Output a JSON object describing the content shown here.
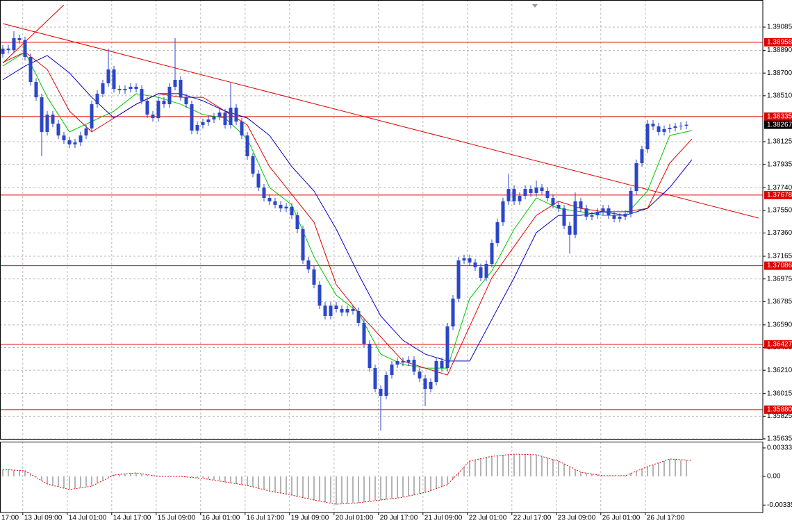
{
  "chart_data": {
    "type": "candlestick",
    "xlim": [
      -0.5,
      136.75
    ],
    "ylim": [
      1.35635,
      1.39312
    ],
    "grid": true,
    "xticks": [
      {
        "value": -4.4,
        "label": "17:00"
      },
      {
        "value": 3.6,
        "label": "13 Jul 09:00"
      },
      {
        "value": 11.6,
        "label": "14 Jul 01:00"
      },
      {
        "value": 19.6,
        "label": "14 Jul 17:00"
      },
      {
        "value": 27.6,
        "label": "15 Jul 09:00"
      },
      {
        "value": 35.6,
        "label": "16 Jul 01:00"
      },
      {
        "value": 43.6,
        "label": "16 Jul 17:00"
      },
      {
        "value": 51.6,
        "label": "19 Jul 09:00"
      },
      {
        "value": 59.6,
        "label": "20 Jul 01:00"
      },
      {
        "value": 67.6,
        "label": "20 Jul 17:00"
      },
      {
        "value": 75.6,
        "label": "21 Jul 09:00"
      },
      {
        "value": 83.6,
        "label": "22 Jul 01:00"
      },
      {
        "value": 91.6,
        "label": "22 Jul 17:00"
      },
      {
        "value": 99.6,
        "label": "23 Jul 09:00"
      },
      {
        "value": 107.6,
        "label": "26 Jul 01:00"
      },
      {
        "value": 115.6,
        "label": "26 Jul 17:00"
      }
    ],
    "yticks": [
      1.39085,
      {
        "value": 1.3889,
        "label": "1.38890"
      },
      {
        "value": 1.387,
        "label": "1.38700"
      },
      {
        "value": 1.3851,
        "label": "1.38510"
      },
      1.38125,
      1.37935,
      {
        "value": 1.3774,
        "label": "1.37740"
      },
      {
        "value": 1.3755,
        "label": "1.37550"
      },
      {
        "value": 1.3736,
        "label": "1.37360"
      },
      1.37165,
      1.36975,
      1.36785,
      {
        "value": 1.3659,
        "label": "1.36590"
      },
      {
        "value": 1.364,
        "label": "1.36400"
      },
      {
        "value": 1.3621,
        "label": "1.36210"
      },
      1.36015,
      1.35825,
      1.35635
    ],
    "candle_color": "#2b46c8",
    "open": [
      1.3886,
      1.38905,
      1.38893,
      1.38992,
      1.38975,
      1.38835,
      1.38625,
      1.38497,
      1.38207,
      1.38352,
      1.38276,
      1.38177,
      1.38137,
      1.38102,
      1.38119,
      1.38177,
      1.38236,
      1.38439,
      1.38527,
      1.38614,
      1.3873,
      1.38567,
      1.38556,
      1.38567,
      1.38585,
      1.38567,
      1.38468,
      1.38352,
      1.38323,
      1.38468,
      1.38439,
      1.38585,
      1.38643,
      1.38497,
      1.38439,
      1.38218,
      1.38265,
      1.38288,
      1.38311,
      1.38335,
      1.38369,
      1.38265,
      1.3841,
      1.38294,
      1.38177,
      1.38003,
      1.37857,
      1.37741,
      1.37654,
      1.37625,
      1.37596,
      1.37566,
      1.3758,
      1.37508,
      1.37392,
      1.3713,
      1.37055,
      1.36927,
      1.36752,
      1.36665,
      1.36752,
      1.36723,
      1.36694,
      1.36723,
      1.36706,
      1.36607,
      1.36432,
      1.36228,
      1.36054,
      1.35996,
      1.3617,
      1.36258,
      1.36287,
      1.36275,
      1.36298,
      1.36199,
      1.36141,
      1.36054,
      1.36112,
      1.36287,
      1.36228,
      1.36577,
      1.3681,
      1.3713,
      1.37148,
      1.37113,
      1.37073,
      1.36985,
      1.37101,
      1.37276,
      1.3745,
      1.37625,
      1.37729,
      1.37625,
      1.37671,
      1.37729,
      1.37695,
      1.37741,
      1.37712,
      1.37654,
      1.37596,
      1.37566,
      1.37421,
      1.37346,
      1.37625,
      1.37566,
      1.37497,
      1.37508,
      1.37538,
      1.37566,
      1.37508,
      1.37479,
      1.37497,
      1.3752,
      1.37712,
      1.37945,
      1.38061,
      1.38276,
      1.38253,
      1.38207,
      1.3823,
      1.38241,
      1.38253,
      1.38259
    ],
    "high": [
      1.38935,
      1.38935,
      1.3905,
      1.39022,
      1.39005,
      1.38865,
      1.38655,
      1.38527,
      1.38382,
      1.38382,
      1.38306,
      1.38207,
      1.38167,
      1.38149,
      1.38207,
      1.38266,
      1.38469,
      1.38557,
      1.38644,
      1.38905,
      1.3876,
      1.38597,
      1.38597,
      1.38615,
      1.38615,
      1.38597,
      1.38498,
      1.38382,
      1.38498,
      1.38498,
      1.38615,
      1.38992,
      1.38673,
      1.38527,
      1.38469,
      1.38295,
      1.38318,
      1.38341,
      1.38365,
      1.38399,
      1.38399,
      1.38614,
      1.3844,
      1.38324,
      1.38207,
      1.38033,
      1.37887,
      1.37771,
      1.37684,
      1.37655,
      1.37626,
      1.3761,
      1.3761,
      1.37538,
      1.37422,
      1.3716,
      1.37085,
      1.36957,
      1.36782,
      1.36782,
      1.36782,
      1.36753,
      1.36753,
      1.36753,
      1.36736,
      1.36637,
      1.36462,
      1.36258,
      1.36084,
      1.362,
      1.36288,
      1.36317,
      1.36317,
      1.36328,
      1.36328,
      1.36229,
      1.36171,
      1.36142,
      1.36317,
      1.36317,
      1.36607,
      1.3684,
      1.3716,
      1.37178,
      1.37178,
      1.37143,
      1.37103,
      1.37131,
      1.37306,
      1.3748,
      1.37655,
      1.37857,
      1.37759,
      1.37701,
      1.37759,
      1.37759,
      1.378,
      1.37771,
      1.37742,
      1.37684,
      1.37626,
      1.37596,
      1.37451,
      1.377,
      1.37655,
      1.37596,
      1.37538,
      1.37568,
      1.37596,
      1.37596,
      1.37538,
      1.37527,
      1.3755,
      1.37742,
      1.37975,
      1.38091,
      1.38306,
      1.38306,
      1.38283,
      1.3826,
      1.38271,
      1.38283,
      1.38289,
      1.38297
    ],
    "low": [
      1.3883,
      1.38863,
      1.38863,
      1.38945,
      1.38805,
      1.38595,
      1.38467,
      1.38003,
      1.38177,
      1.38246,
      1.38147,
      1.38107,
      1.38072,
      1.38072,
      1.38089,
      1.38147,
      1.38206,
      1.38409,
      1.38497,
      1.38584,
      1.38537,
      1.38526,
      1.38526,
      1.38537,
      1.38537,
      1.38438,
      1.38322,
      1.38293,
      1.38293,
      1.38409,
      1.38409,
      1.38555,
      1.38467,
      1.38409,
      1.38188,
      1.38188,
      1.38235,
      1.38258,
      1.38281,
      1.38305,
      1.38235,
      1.38235,
      1.38264,
      1.38147,
      1.37973,
      1.37827,
      1.37711,
      1.37624,
      1.37595,
      1.37566,
      1.37536,
      1.37536,
      1.37478,
      1.37362,
      1.371,
      1.37025,
      1.36897,
      1.36722,
      1.36635,
      1.36635,
      1.36693,
      1.36664,
      1.36664,
      1.36676,
      1.36577,
      1.36402,
      1.36198,
      1.36024,
      1.35705,
      1.35966,
      1.3614,
      1.36228,
      1.36245,
      1.36245,
      1.36169,
      1.36111,
      1.35909,
      1.36024,
      1.36082,
      1.36198,
      1.36198,
      1.36547,
      1.3678,
      1.371,
      1.37083,
      1.37043,
      1.36955,
      1.36955,
      1.37071,
      1.37246,
      1.3742,
      1.37595,
      1.37595,
      1.37595,
      1.37641,
      1.37665,
      1.37665,
      1.37682,
      1.37624,
      1.37566,
      1.37536,
      1.37391,
      1.37188,
      1.37316,
      1.37536,
      1.37467,
      1.37467,
      1.37478,
      1.37508,
      1.37478,
      1.37449,
      1.37449,
      1.37467,
      1.3749,
      1.37682,
      1.37915,
      1.38031,
      1.38223,
      1.38177,
      1.38177,
      1.382,
      1.38211,
      1.38223,
      1.38229
    ],
    "close": [
      1.38905,
      1.38893,
      1.38992,
      1.38975,
      1.38835,
      1.38625,
      1.38497,
      1.38207,
      1.38352,
      1.38276,
      1.38177,
      1.38137,
      1.38102,
      1.38119,
      1.38177,
      1.38236,
      1.38439,
      1.38527,
      1.38614,
      1.3873,
      1.38567,
      1.38556,
      1.38567,
      1.38585,
      1.38567,
      1.38468,
      1.38352,
      1.38323,
      1.38468,
      1.38439,
      1.38585,
      1.38643,
      1.38497,
      1.38439,
      1.38218,
      1.38265,
      1.38288,
      1.38311,
      1.38335,
      1.38369,
      1.38265,
      1.3841,
      1.38294,
      1.38177,
      1.38003,
      1.37857,
      1.37741,
      1.37654,
      1.37625,
      1.37596,
      1.37566,
      1.3758,
      1.37508,
      1.37392,
      1.3713,
      1.37055,
      1.36927,
      1.36752,
      1.36665,
      1.36752,
      1.36723,
      1.36694,
      1.36723,
      1.36706,
      1.36607,
      1.36432,
      1.36228,
      1.36054,
      1.35996,
      1.3617,
      1.36258,
      1.36287,
      1.36275,
      1.36298,
      1.36199,
      1.36141,
      1.36054,
      1.36112,
      1.36287,
      1.36228,
      1.36577,
      1.3681,
      1.3713,
      1.37148,
      1.37113,
      1.37073,
      1.36985,
      1.37101,
      1.37276,
      1.3745,
      1.37625,
      1.37729,
      1.37625,
      1.37671,
      1.37729,
      1.37695,
      1.37741,
      1.37712,
      1.37654,
      1.37596,
      1.37566,
      1.37421,
      1.37346,
      1.37625,
      1.37566,
      1.37497,
      1.37508,
      1.37538,
      1.37566,
      1.37508,
      1.37479,
      1.37497,
      1.3752,
      1.37712,
      1.37945,
      1.38061,
      1.38276,
      1.38253,
      1.38207,
      1.3823,
      1.38241,
      1.38253,
      1.38259,
      1.38267
    ],
    "current_price": 1.38267,
    "moving_averages": [
      {
        "color": "#00c800",
        "x": [
          0,
          4,
          8,
          12,
          16,
          20,
          24,
          28,
          32,
          36,
          40,
          44,
          48,
          52,
          56,
          60,
          64,
          68,
          72,
          76,
          80,
          84,
          88,
          92,
          96,
          100,
          104,
          108,
          112,
          116,
          120,
          124
        ],
        "values": [
          1.38759,
          1.38876,
          1.38497,
          1.38207,
          1.38294,
          1.38381,
          1.38527,
          1.38497,
          1.38439,
          1.38352,
          1.38323,
          1.38148,
          1.37741,
          1.37596,
          1.37159,
          1.36839,
          1.36694,
          1.36345,
          1.36258,
          1.36228,
          1.36228,
          1.3681,
          1.37043,
          1.37392,
          1.37654,
          1.37566,
          1.37538,
          1.37508,
          1.37508,
          1.37712,
          1.38177,
          1.38218
        ]
      },
      {
        "color": "#e00000",
        "x": [
          0,
          4,
          8,
          12,
          16,
          20,
          24,
          28,
          32,
          36,
          40,
          44,
          48,
          52,
          56,
          60,
          64,
          68,
          72,
          76,
          80,
          84,
          88,
          92,
          96,
          100,
          104,
          108,
          112,
          116,
          120,
          124
        ],
        "values": [
          1.38788,
          1.38876,
          1.3873,
          1.38381,
          1.38207,
          1.38323,
          1.38439,
          1.38527,
          1.38497,
          1.38497,
          1.38381,
          1.38265,
          1.37916,
          1.37683,
          1.3745,
          1.36927,
          1.36694,
          1.3649,
          1.36287,
          1.36228,
          1.3617,
          1.36577,
          1.36985,
          1.37247,
          1.37508,
          1.37625,
          1.37566,
          1.37538,
          1.37538,
          1.37566,
          1.37945,
          1.38148
        ]
      },
      {
        "color": "#0000c0",
        "x": [
          0,
          4,
          8,
          12,
          16,
          20,
          24,
          28,
          32,
          36,
          40,
          44,
          48,
          52,
          56,
          60,
          64,
          68,
          72,
          76,
          80,
          84,
          88,
          92,
          96,
          100,
          104,
          108,
          112,
          116,
          120,
          124
        ],
        "values": [
          1.38643,
          1.38759,
          1.38847,
          1.38701,
          1.38497,
          1.38323,
          1.38439,
          1.38527,
          1.38527,
          1.38468,
          1.38381,
          1.38323,
          1.38177,
          1.37916,
          1.37712,
          1.37392,
          1.37014,
          1.36665,
          1.36461,
          1.36345,
          1.36287,
          1.36287,
          1.36636,
          1.36985,
          1.37363,
          1.37508,
          1.37508,
          1.37538,
          1.37508,
          1.37566,
          1.37741,
          1.37974
        ]
      }
    ],
    "level_color": "#e00000",
    "levels": [
      1.38958,
      1.38335,
      1.37678,
      1.37086,
      1.36427,
      {
        "value": 1.3588,
        "label": "1.35880"
      }
    ],
    "trendlines": [
      {
        "color": "#e00000",
        "start": [
          0,
          1.39114
        ],
        "end": [
          136,
          1.37485
        ]
      },
      {
        "color": "#e00000",
        "start": [
          0,
          1.38783
        ],
        "end": [
          11,
          1.39271
        ]
      }
    ],
    "oscillator": {
      "ylim": [
        -0.00422,
        0.00406
      ],
      "yticks": [
        0.00333,
        {
          "value": 0,
          "label": "0.00"
        },
        -0.00335
      ],
      "hist_color": "#b4b4b4",
      "histogram": [
        0.0008,
        0.0008,
        0.0007,
        0.0007,
        0.0007,
        0.0003,
        -0.0001,
        -0.0005,
        -0.0009,
        -0.001,
        -0.0012,
        -0.0014,
        -0.0015,
        -0.0014,
        -0.0013,
        -0.0012,
        -0.0011,
        -0.0008,
        -0.0005,
        -0.0002,
        0.0002,
        0.0002,
        0.0003,
        0.0004,
        0.0004,
        0.0003,
        0.0002,
        0.0001,
        0,
        0,
        0,
        0,
        0,
        -0.0001,
        -0.0001,
        -0.0002,
        -0.0002,
        -0.0003,
        -0.0004,
        -0.0005,
        -0.0007,
        -0.0008,
        -0.0009,
        -0.001,
        -0.0011,
        -0.0012,
        -0.0014,
        -0.0015,
        -0.0017,
        -0.0018,
        -0.0019,
        -0.0021,
        -0.0022,
        -0.0023,
        -0.0025,
        -0.0026,
        -0.0028,
        -0.0029,
        -0.003,
        -0.0031,
        -0.0033,
        -0.0032,
        -0.0032,
        -0.0031,
        -0.0031,
        -0.003,
        -0.0029,
        -0.0028,
        -0.0028,
        -0.0027,
        -0.0026,
        -0.0025,
        -0.0024,
        -0.0023,
        -0.0022,
        -0.002,
        -0.0019,
        -0.0017,
        -0.0014,
        -0.0012,
        -0.001,
        -0.0003,
        0.0004,
        0.0011,
        0.0018,
        0.0019,
        0.0021,
        0.0022,
        0.0024,
        0.0024,
        0.0025,
        0.0025,
        0.0026,
        0.0026,
        0.0026,
        0.0025,
        0.0025,
        0.0023,
        0.0022,
        0.002,
        0.0018,
        0.0015,
        0.0011,
        0.0008,
        0.0005,
        0.0004,
        0.0003,
        0.0002,
        0.0001,
        0.0001,
        0.0001,
        0.0001,
        0.0001,
        0.0004,
        0.0006,
        0.0009,
        0.0011,
        0.0013,
        0.0016,
        0.0018,
        0.002,
        0.002,
        0.0019,
        0.0019
      ],
      "signal_color": "#e00000",
      "x": [
        0,
        4,
        8,
        12,
        16,
        20,
        24,
        28,
        32,
        36,
        40,
        44,
        48,
        52,
        56,
        60,
        64,
        68,
        72,
        76,
        80,
        84,
        88,
        92,
        96,
        100,
        104,
        108,
        112,
        116,
        120,
        124
      ],
      "signal": [
        0.00081,
        0.00065,
        -0.00089,
        -0.00154,
        -0.00114,
        0.00016,
        0.00041,
        0,
        0,
        -0.00024,
        -0.00065,
        -0.00106,
        -0.00171,
        -0.00219,
        -0.00276,
        -0.00325,
        -0.00309,
        -0.00276,
        -0.00244,
        -0.00187,
        -0.00097,
        0.00179,
        0.00235,
        0.0026,
        0.00252,
        0.00179,
        0.00049,
        8e-05,
        8e-05,
        0.00114,
        0.00203,
        0.00187
      ]
    }
  }
}
